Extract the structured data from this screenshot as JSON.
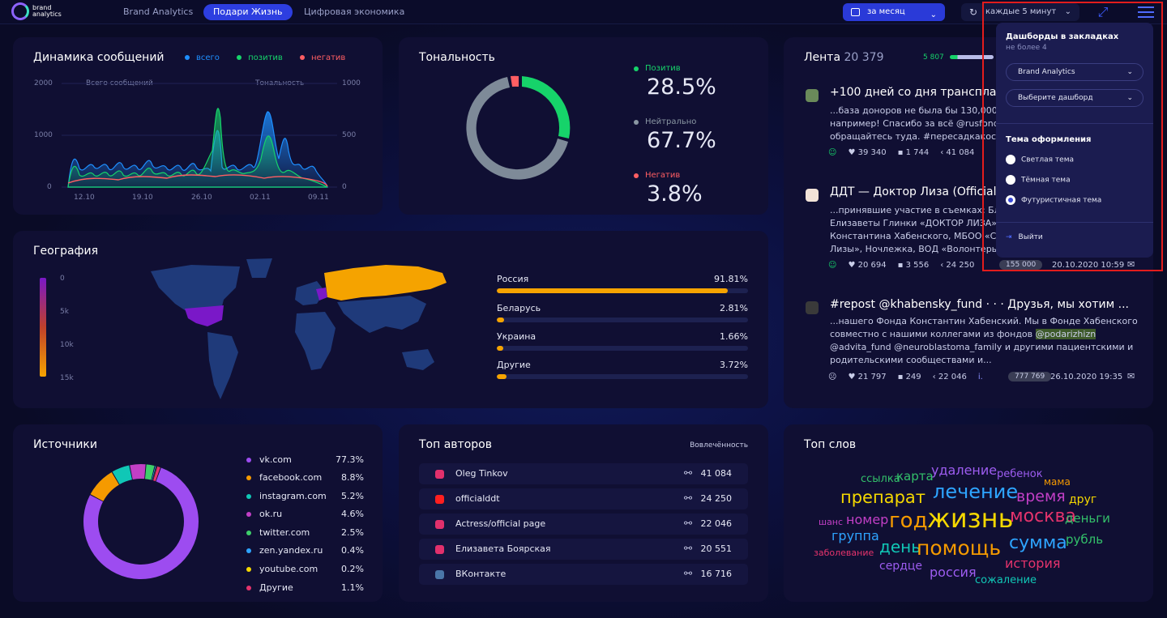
{
  "brand": {
    "name": "brand\nanalytics"
  },
  "nav": {
    "tabs": [
      {
        "label": "Brand Analytics"
      },
      {
        "label": "Подари Жизнь"
      },
      {
        "label": "Цифровая экономика"
      }
    ]
  },
  "toolbar": {
    "period": "за месяц",
    "refresh": "каждые 5 минут"
  },
  "dynamics": {
    "title": "Динамика сообщений",
    "legend": [
      {
        "label": "всего",
        "color": "#1e8fff"
      },
      {
        "label": "позитив",
        "color": "#16d36a"
      },
      {
        "label": "негатив",
        "color": "#ff5e63"
      }
    ],
    "left_axis_title": "Всего сообщений",
    "right_axis_title": "Тональность",
    "left_ticks": [
      "2000",
      "1000",
      "0"
    ],
    "right_ticks": [
      "1000",
      "500",
      "0"
    ],
    "x_ticks": [
      "12.10",
      "19.10",
      "26.10",
      "02.11",
      "09.11"
    ]
  },
  "tonality": {
    "title": "Тональность",
    "items": [
      {
        "label": "Позитив",
        "value": "28.5%",
        "color": "#16d36a"
      },
      {
        "label": "Нейтрально",
        "value": "67.7%",
        "color": "#8a97a3"
      },
      {
        "label": "Негатив",
        "value": "3.8%",
        "color": "#ff5e63"
      }
    ]
  },
  "geography": {
    "title": "География",
    "scale": [
      "0",
      "5k",
      "10k",
      "15k"
    ],
    "rows": [
      {
        "label": "Россия",
        "value": "91.81%",
        "pct": 91.81
      },
      {
        "label": "Беларусь",
        "value": "2.81%",
        "pct": 2.81
      },
      {
        "label": "Украина",
        "value": "1.66%",
        "pct": 1.66
      },
      {
        "label": "Другие",
        "value": "3.72%",
        "pct": 3.72
      }
    ]
  },
  "feed": {
    "title": "Лента",
    "count": "20 379",
    "pos_count": "5 807",
    "posts": [
      {
        "title": "+100 дней со дня трансплант",
        "text_lines": [
          "...база доноров не была бы 130,000, а",
          "например! Спасибо за всё @rusfond @",
          "обращайтесь туда. #пересадкакостн"
        ],
        "likes": "39 340",
        "comments": "1 744",
        "shares": "41 084"
      },
      {
        "title": "ДДТ — Доктор Лиза (Official",
        "text_lines": [
          "...принявшие участие в съемках: Благ",
          "Елизаветы Глинки «ДОКТОР ЛИЗА», ",
          "Константина Хабенского, МБОО «Спр",
          "Лизы», Ночлежка, ВОД «Волонтеры м"
        ],
        "likes": "20 694",
        "comments": "3 556",
        "shares": "24 250",
        "reach": "155 000",
        "date": "20.10.2020 10:59"
      },
      {
        "title": "#repost @khabensky_fund  ·  ·  ·  Друзья, мы хотим ...",
        "text_lines": [
          "...нашего Фонда Константин Хабенский. Мы в Фонде Хабенского",
          "совместно с нашими коллегами из фондов ",
          "@advita_fund @neuroblastoma_family и другими пациентскими и",
          "родительскими сообществами и..."
        ],
        "highlight": "@podarizhizn",
        "likes": "21 797",
        "comments": "249",
        "shares": "22 046",
        "reach": "777 769",
        "date": "26.10.2020 19:35",
        "reach_prefix": "i."
      }
    ]
  },
  "sources": {
    "title": "Источники",
    "items": [
      {
        "name": "vk.com",
        "value": "77.3%",
        "pct": 77.3,
        "color": "#9d4cf0"
      },
      {
        "name": "facebook.com",
        "value": "8.8%",
        "pct": 8.8,
        "color": "#f59a00"
      },
      {
        "name": "instagram.com",
        "value": "5.2%",
        "pct": 5.2,
        "color": "#10c7b6"
      },
      {
        "name": "ok.ru",
        "value": "4.6%",
        "pct": 4.6,
        "color": "#c23fc6"
      },
      {
        "name": "twitter.com",
        "value": "2.5%",
        "pct": 2.5,
        "color": "#3ecf6a"
      },
      {
        "name": "zen.yandex.ru",
        "value": "0.4%",
        "pct": 0.4,
        "color": "#2ea4ff"
      },
      {
        "name": "youtube.com",
        "value": "0.2%",
        "pct": 0.2,
        "color": "#f5d800"
      },
      {
        "name": "Другие",
        "value": "1.1%",
        "pct": 1.1,
        "color": "#e5336c"
      }
    ]
  },
  "authors": {
    "title": "Топ авторов",
    "column": "Вовлечённость",
    "items": [
      {
        "name": "Oleg Tinkov",
        "value": "41 084",
        "color": "#e1306c"
      },
      {
        "name": "officialddt",
        "value": "24 250",
        "color": "#ff1f1f"
      },
      {
        "name": "Actress/official page",
        "value": "22 046",
        "color": "#e1306c"
      },
      {
        "name": "Елизавета Боярская",
        "value": "20 551",
        "color": "#e1306c"
      },
      {
        "name": "ВКонтакте",
        "value": "16 716",
        "color": "#4a76a8"
      }
    ]
  },
  "words": {
    "title": "Топ слов",
    "items": [
      {
        "t": "ссылка",
        "c": "#33c06a"
      },
      {
        "t": "карта",
        "c": "#33c06a"
      },
      {
        "t": "удаление",
        "c": "#9d5cf0"
      },
      {
        "t": "ребенок",
        "c": "#9d5cf0"
      },
      {
        "t": "мама",
        "c": "#f59a00"
      },
      {
        "t": "препарат",
        "c": "#f5d800"
      },
      {
        "t": "лечение",
        "c": "#2ea4ff"
      },
      {
        "t": "время",
        "c": "#c23fc6"
      },
      {
        "t": "друг",
        "c": "#f5d800"
      },
      {
        "t": "шанс",
        "c": "#c23fc6"
      },
      {
        "t": "номер",
        "c": "#c23fc6"
      },
      {
        "t": "год",
        "c": "#f59a00"
      },
      {
        "t": "жизнь",
        "c": "#f5d800"
      },
      {
        "t": "москва",
        "c": "#e5336c"
      },
      {
        "t": "деньги",
        "c": "#33c06a"
      },
      {
        "t": "группа",
        "c": "#2ea4ff"
      },
      {
        "t": "заболевание",
        "c": "#e5336c"
      },
      {
        "t": "день",
        "c": "#10c7b6"
      },
      {
        "t": "помощь",
        "c": "#f59a00"
      },
      {
        "t": "сумма",
        "c": "#2ea4ff"
      },
      {
        "t": "рубль",
        "c": "#33c06a"
      },
      {
        "t": "сердце",
        "c": "#9d5cf0"
      },
      {
        "t": "история",
        "c": "#e5336c"
      },
      {
        "t": "россия",
        "c": "#9d5cf0"
      },
      {
        "t": "сожаление",
        "c": "#10c7b6"
      }
    ]
  },
  "dropdown": {
    "bookmarks_title": "Дашборды в закладках",
    "bookmarks_sub": "не более 4",
    "select1": "Brand Analytics",
    "select2": "Выберите дашборд",
    "theme_title": "Тема оформления",
    "themes": [
      {
        "label": "Светлая тема",
        "selected": false
      },
      {
        "label": "Тёмная тема",
        "selected": false
      },
      {
        "label": "Футуристичная тема",
        "selected": true
      }
    ],
    "logout": "Выйти"
  }
}
